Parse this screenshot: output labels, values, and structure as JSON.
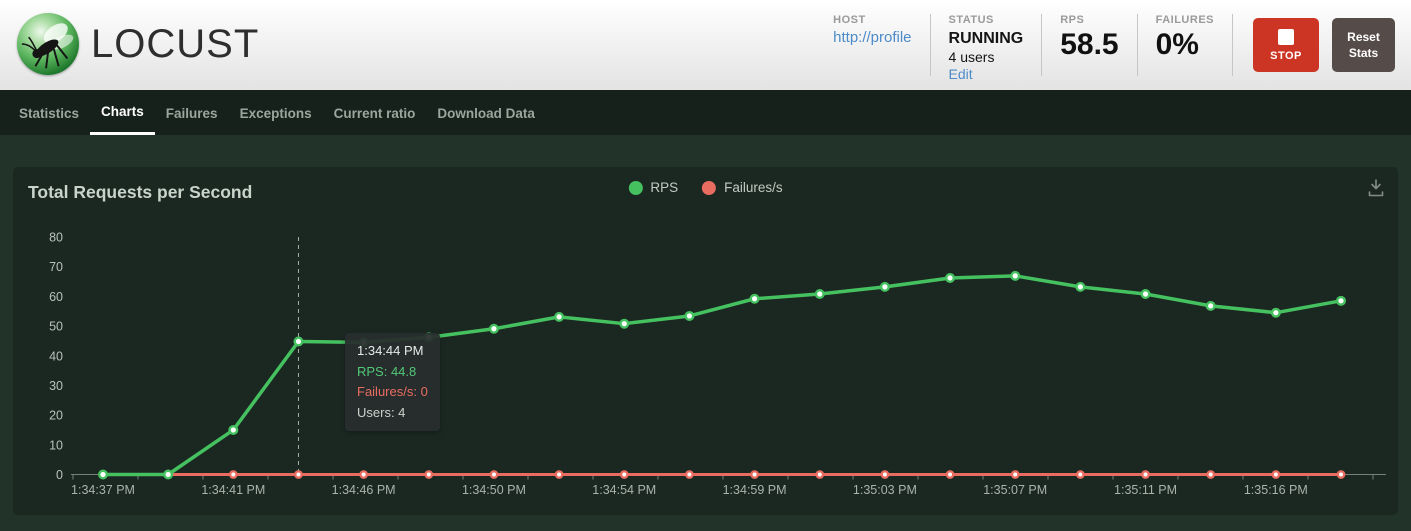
{
  "header": {
    "logo_text": "LOCUST",
    "host": {
      "label": "HOST",
      "value": "http://profile"
    },
    "status": {
      "label": "STATUS",
      "state": "RUNNING",
      "users": "4 users",
      "edit_link": "Edit"
    },
    "rps": {
      "label": "RPS",
      "value": "58.5"
    },
    "failures": {
      "label": "FAILURES",
      "value": "0%"
    },
    "stop_button_label": "STOP",
    "reset_button_label": "Reset Stats"
  },
  "nav": {
    "items": [
      {
        "label": "Statistics",
        "active": false
      },
      {
        "label": "Charts",
        "active": true
      },
      {
        "label": "Failures",
        "active": false
      },
      {
        "label": "Exceptions",
        "active": false
      },
      {
        "label": "Current ratio",
        "active": false
      },
      {
        "label": "Download Data",
        "active": false
      }
    ]
  },
  "chart": {
    "title": "Total Requests per Second",
    "tooltip": {
      "time": "1:34:44 PM",
      "rps": "RPS: 44.8",
      "failures": "Failures/s: 0",
      "users": "Users: 4"
    }
  },
  "chart_data": {
    "type": "line",
    "title": "Total Requests per Second",
    "x": [
      "1:34:37 PM",
      "1:34:39 PM",
      "1:34:41 PM",
      "1:34:44 PM",
      "1:34:46 PM",
      "1:34:48 PM",
      "1:34:50 PM",
      "1:34:52 PM",
      "1:34:54 PM",
      "1:34:57 PM",
      "1:34:59 PM",
      "1:35:01 PM",
      "1:35:03 PM",
      "1:35:05 PM",
      "1:35:07 PM",
      "1:35:09 PM",
      "1:35:12 PM",
      "1:35:14 PM",
      "1:35:16 PM",
      "1:35:18 PM"
    ],
    "x_ticks": [
      "1:34:37 PM",
      "1:34:41 PM",
      "1:34:46 PM",
      "1:34:50 PM",
      "1:34:54 PM",
      "1:34:59 PM",
      "1:35:03 PM",
      "1:35:07 PM",
      "1:35:11 PM",
      "1:35:16 PM"
    ],
    "y_ticks": [
      0,
      10,
      20,
      30,
      40,
      50,
      60,
      70,
      80
    ],
    "ylim": [
      0,
      80
    ],
    "grid": false,
    "legend_position": "top-center",
    "series": [
      {
        "name": "RPS",
        "color": "#45c160",
        "values": [
          0,
          0,
          15,
          44.8,
          44.5,
          46.2,
          49.1,
          53.1,
          50.8,
          53.4,
          59.2,
          60.8,
          63.2,
          66.2,
          66.9,
          63.2,
          60.8,
          56.8,
          54.5,
          58.5
        ]
      },
      {
        "name": "Failures/s",
        "color": "#e96c60",
        "values": [
          0,
          0,
          0,
          0,
          0,
          0,
          0,
          0,
          0,
          0,
          0,
          0,
          0,
          0,
          0,
          0,
          0,
          0,
          0,
          0
        ]
      }
    ],
    "tooltip_point_index": 3
  },
  "colors": {
    "accent_green": "#45c160",
    "accent_red": "#e96c60",
    "stop_red": "#cc3523",
    "reset_gray": "#554b48",
    "link_blue": "#4d8bc9",
    "nav_bg": "#16211b",
    "page_bg": "#223329",
    "panel_bg": "#1b2822"
  }
}
